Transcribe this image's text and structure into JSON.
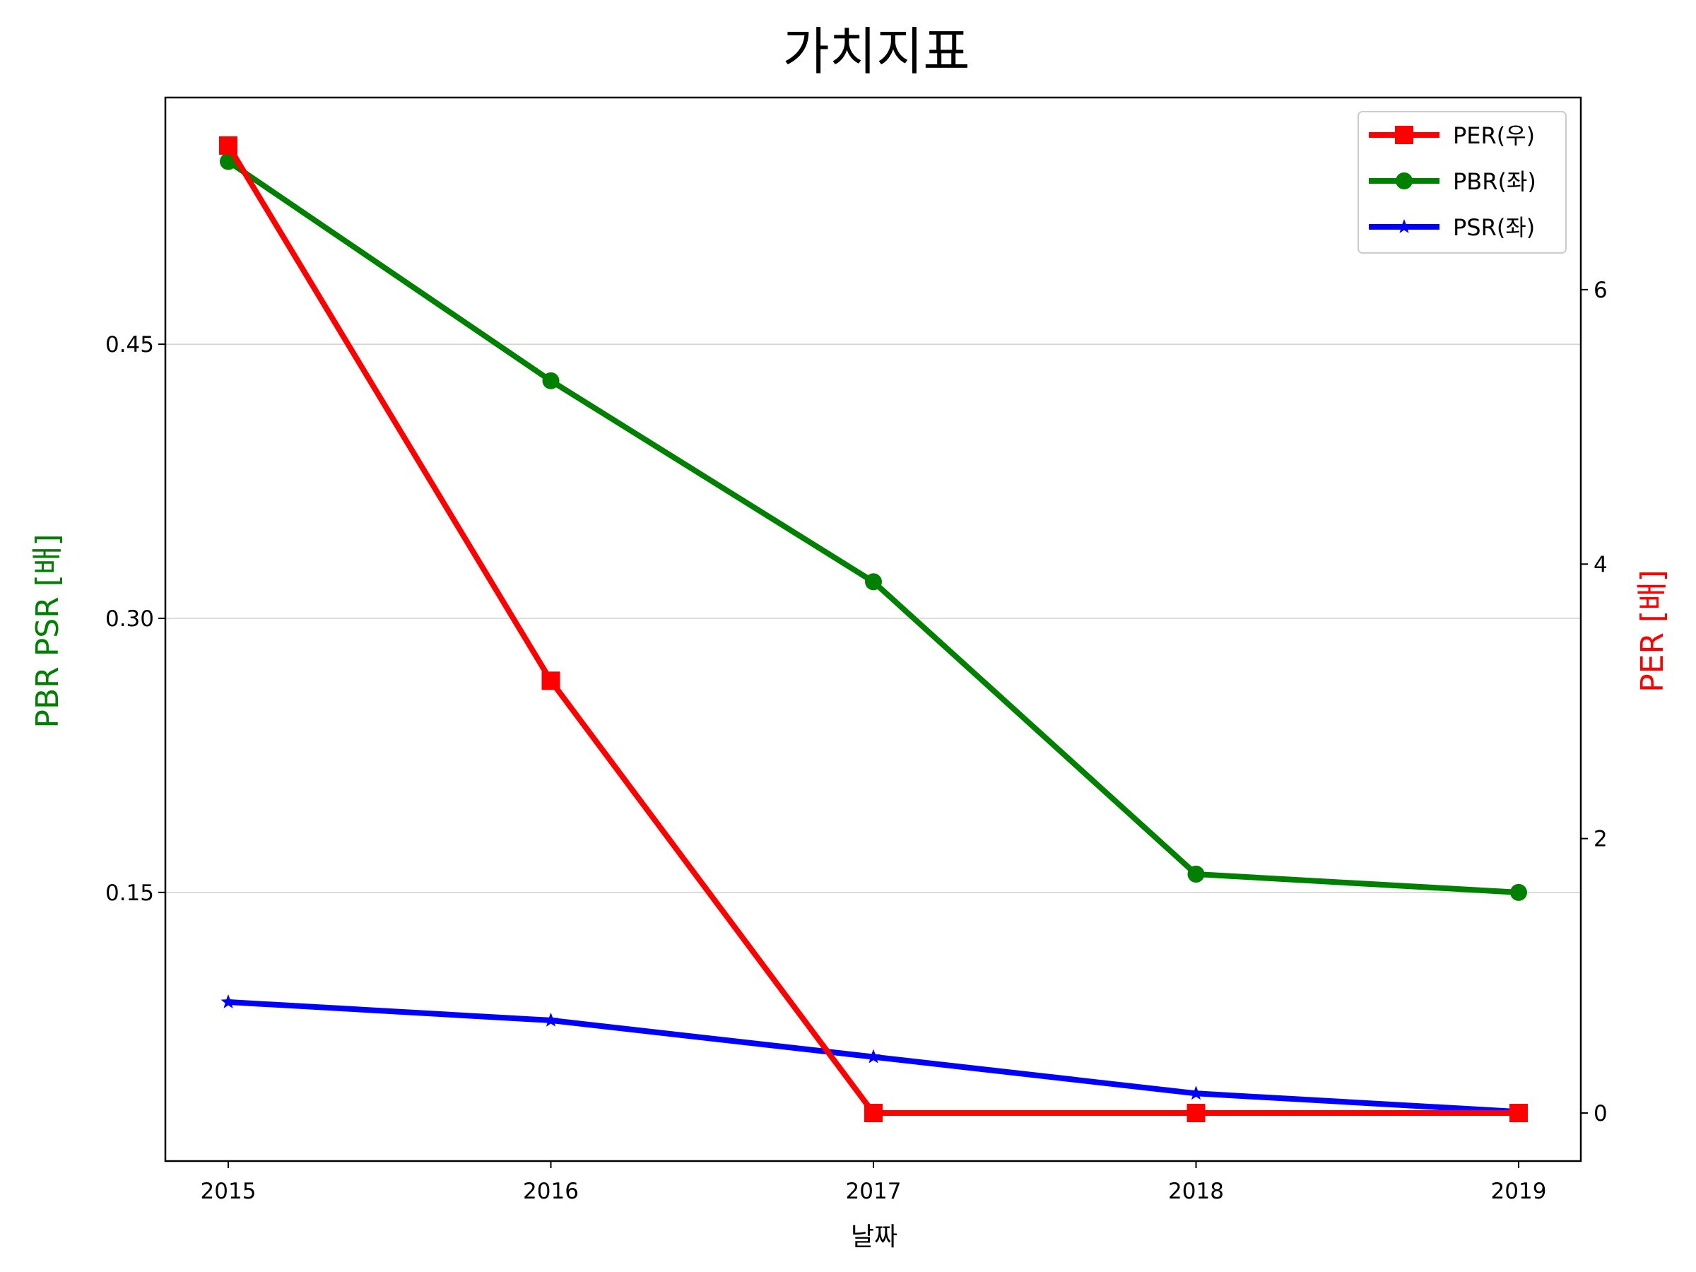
{
  "chart_data": {
    "type": "line",
    "title": "가치지표",
    "xlabel": "날짜",
    "ylabel_left": "PBR PSR [배]",
    "ylabel_right": "PER [배]",
    "x": [
      2015,
      2016,
      2017,
      2018,
      2019
    ],
    "xticks": [
      "2015",
      "2016",
      "2017",
      "2018",
      "2019"
    ],
    "yticks_left": [
      "0.15",
      "0.30",
      "0.45"
    ],
    "yticks_left_values": [
      0.15,
      0.3,
      0.45
    ],
    "yticks_right": [
      "0",
      "2",
      "4",
      "6"
    ],
    "yticks_right_values": [
      0,
      2,
      4,
      6
    ],
    "ylim_left": [
      0.003,
      0.585
    ],
    "ylim_right": [
      -0.35,
      7.4
    ],
    "grid": "horizontal (left axis)",
    "legend_position": "top-right",
    "series": [
      {
        "name": "PER(우)",
        "axis": "right",
        "marker": "square",
        "color": "#ff0000",
        "values": [
          7.05,
          3.15,
          0.0,
          0.0,
          0.0
        ]
      },
      {
        "name": "PBR(좌)",
        "axis": "left",
        "marker": "circle",
        "color": "#008000",
        "values": [
          0.55,
          0.43,
          0.32,
          0.16,
          0.15
        ]
      },
      {
        "name": "PSR(좌)",
        "axis": "left",
        "marker": "star",
        "color": "#0000ff",
        "values": [
          0.09,
          0.08,
          0.06,
          0.04,
          0.03
        ]
      }
    ]
  }
}
